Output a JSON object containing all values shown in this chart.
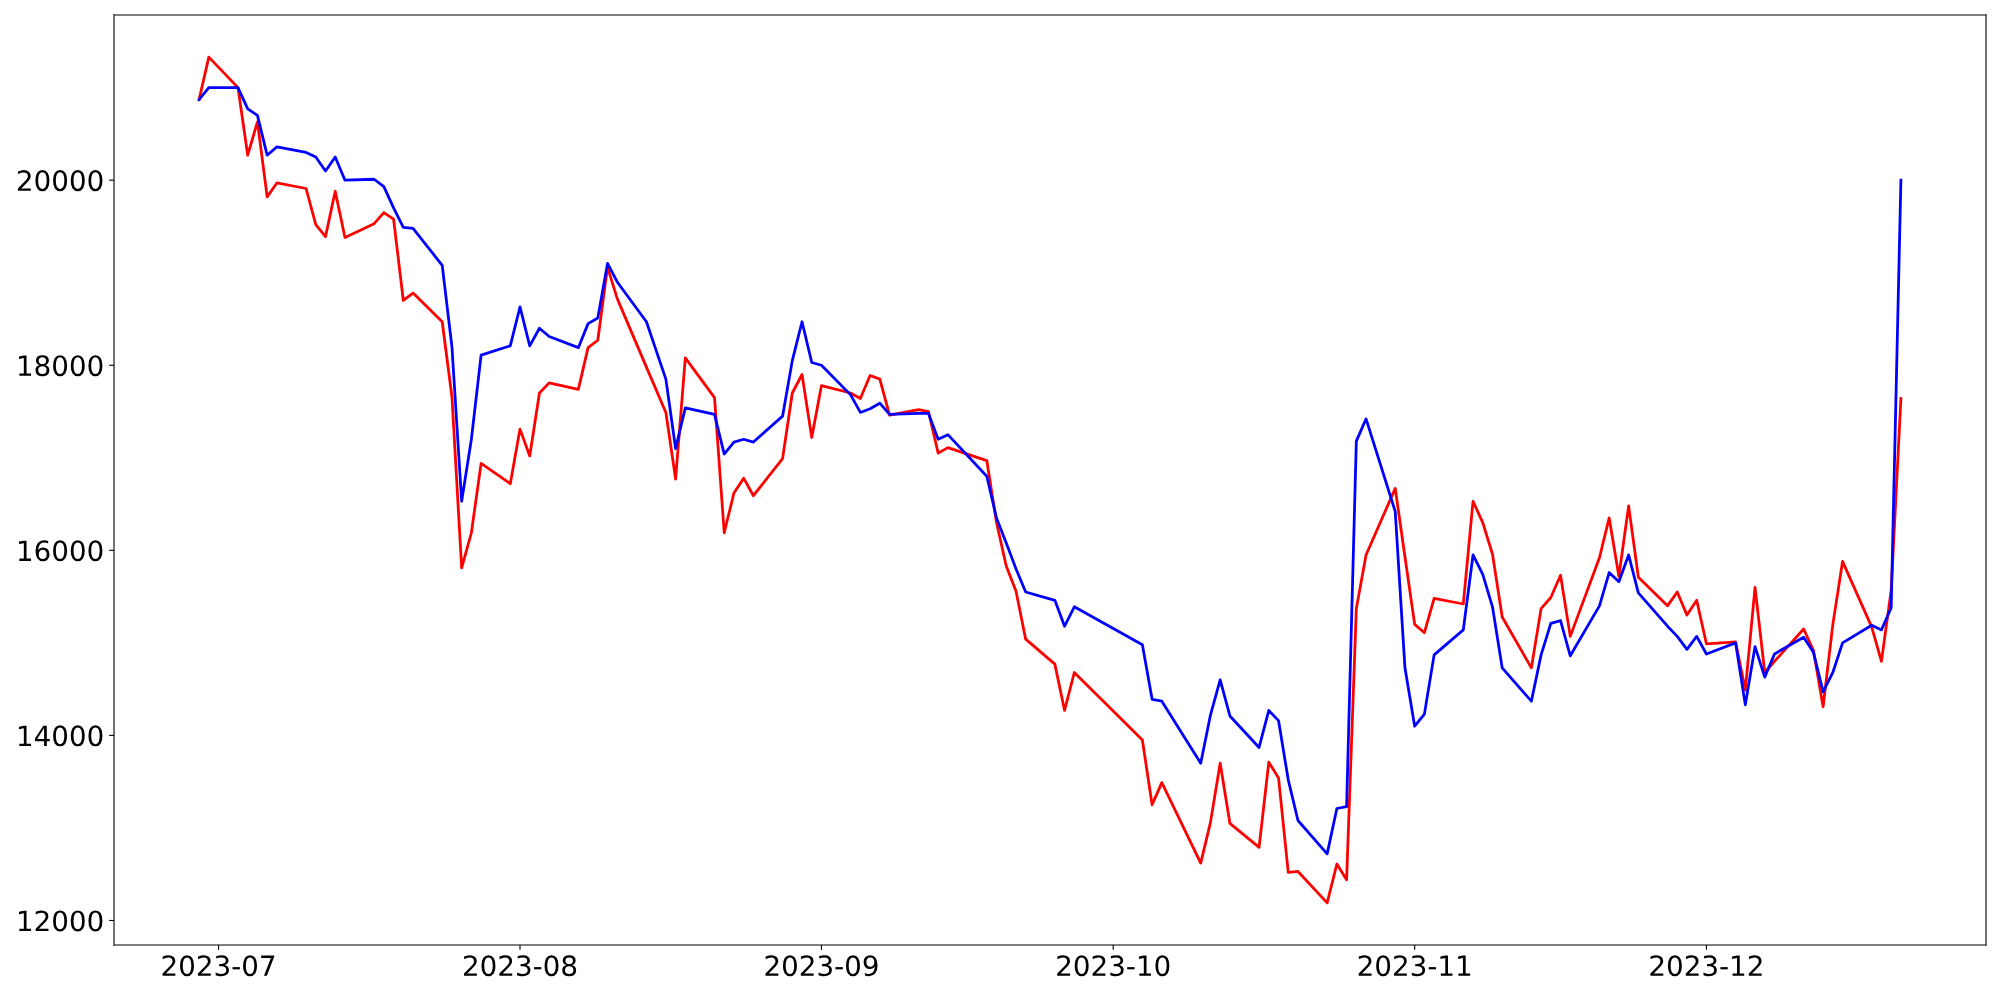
{
  "chart_data": {
    "type": "line",
    "x": [
      "2023-06-29",
      "2023-06-30",
      "2023-07-03",
      "2023-07-04",
      "2023-07-05",
      "2023-07-06",
      "2023-07-07",
      "2023-07-10",
      "2023-07-11",
      "2023-07-12",
      "2023-07-13",
      "2023-07-14",
      "2023-07-17",
      "2023-07-18",
      "2023-07-19",
      "2023-07-20",
      "2023-07-21",
      "2023-07-24",
      "2023-07-25",
      "2023-07-26",
      "2023-07-27",
      "2023-07-28",
      "2023-07-31",
      "2023-08-01",
      "2023-08-02",
      "2023-08-03",
      "2023-08-04",
      "2023-08-07",
      "2023-08-08",
      "2023-08-09",
      "2023-08-10",
      "2023-08-11",
      "2023-08-14",
      "2023-08-16",
      "2023-08-17",
      "2023-08-18",
      "2023-08-21",
      "2023-08-22",
      "2023-08-23",
      "2023-08-24",
      "2023-08-25",
      "2023-08-28",
      "2023-08-29",
      "2023-08-30",
      "2023-08-31",
      "2023-09-01",
      "2023-09-04",
      "2023-09-05",
      "2023-09-06",
      "2023-09-07",
      "2023-09-08",
      "2023-09-11",
      "2023-09-12",
      "2023-09-13",
      "2023-09-14",
      "2023-09-18",
      "2023-09-19",
      "2023-09-20",
      "2023-09-21",
      "2023-09-22",
      "2023-09-25",
      "2023-09-26",
      "2023-09-27",
      "2023-10-04",
      "2023-10-05",
      "2023-10-06",
      "2023-10-10",
      "2023-10-11",
      "2023-10-12",
      "2023-10-13",
      "2023-10-16",
      "2023-10-17",
      "2023-10-18",
      "2023-10-19",
      "2023-10-20",
      "2023-10-23",
      "2023-10-24",
      "2023-10-25",
      "2023-10-26",
      "2023-10-27",
      "2023-10-30",
      "2023-10-31",
      "2023-11-01",
      "2023-11-02",
      "2023-11-03",
      "2023-11-06",
      "2023-11-07",
      "2023-11-08",
      "2023-11-09",
      "2023-11-10",
      "2023-11-13",
      "2023-11-14",
      "2023-11-15",
      "2023-11-16",
      "2023-11-17",
      "2023-11-20",
      "2023-11-21",
      "2023-11-22",
      "2023-11-23",
      "2023-11-24",
      "2023-11-27",
      "2023-11-28",
      "2023-11-29",
      "2023-11-30",
      "2023-12-01",
      "2023-12-04",
      "2023-12-05",
      "2023-12-06",
      "2023-12-07",
      "2023-12-08",
      "2023-12-11",
      "2023-12-12",
      "2023-12-13",
      "2023-12-14",
      "2023-12-15",
      "2023-12-18",
      "2023-12-19",
      "2023-12-20",
      "2023-12-21"
    ],
    "series": [
      {
        "color": "#ff0000",
        "values": [
          20870,
          21330,
          21000,
          20270,
          20630,
          19820,
          19970,
          19910,
          19520,
          19390,
          19880,
          19380,
          19530,
          19650,
          19580,
          18700,
          18780,
          18470,
          17660,
          15810,
          16190,
          16940,
          16720,
          17310,
          17020,
          17700,
          17810,
          17740,
          18190,
          18270,
          19060,
          18720,
          17980,
          17490,
          16770,
          18080,
          17650,
          16190,
          16620,
          16780,
          16590,
          16990,
          17700,
          17900,
          17220,
          17780,
          17700,
          17640,
          17890,
          17850,
          17460,
          17520,
          17500,
          17050,
          17110,
          16970,
          16300,
          15830,
          15560,
          15040,
          14770,
          14270,
          14680,
          13950,
          13250,
          13490,
          12620,
          13060,
          13700,
          13050,
          12790,
          13710,
          13540,
          12520,
          12530,
          12190,
          12610,
          12440,
          15370,
          15950,
          16670,
          15930,
          15200,
          15110,
          15480,
          15420,
          16530,
          16300,
          15960,
          15280,
          14730,
          15370,
          15490,
          15730,
          15070,
          15920,
          16350,
          15720,
          16480,
          15710,
          15400,
          15550,
          15300,
          15460,
          14990,
          15010,
          14490,
          15600,
          14680,
          14800,
          15150,
          14920,
          14310,
          15200,
          15880,
          15170,
          14800,
          15570,
          17640
        ]
      },
      {
        "color": "#0000ff",
        "values": [
          20870,
          21000,
          21000,
          20770,
          20700,
          20270,
          20360,
          20300,
          20250,
          20100,
          20250,
          20000,
          20010,
          19930,
          19700,
          19490,
          19480,
          19080,
          18200,
          16530,
          17200,
          18110,
          18210,
          18630,
          18210,
          18400,
          18310,
          18190,
          18450,
          18510,
          19100,
          18900,
          18470,
          17850,
          17100,
          17540,
          17470,
          17040,
          17170,
          17200,
          17170,
          17450,
          18050,
          18470,
          18030,
          18000,
          17680,
          17490,
          17530,
          17590,
          17470,
          17480,
          17480,
          17200,
          17250,
          16800,
          16350,
          16080,
          15800,
          15550,
          15460,
          15180,
          15390,
          14980,
          14390,
          14370,
          13700,
          14220,
          14600,
          14210,
          13870,
          14270,
          14160,
          13520,
          13080,
          12720,
          13210,
          13230,
          17180,
          17420,
          16420,
          14730,
          14100,
          14230,
          14870,
          15140,
          15950,
          15740,
          15390,
          14730,
          14370,
          14870,
          15210,
          15240,
          14860,
          15400,
          15760,
          15660,
          15950,
          15540,
          15180,
          15070,
          14930,
          15070,
          14880,
          15000,
          14330,
          14960,
          14630,
          14880,
          15060,
          14900,
          14470,
          14680,
          15000,
          15190,
          15140,
          15380,
          20000
        ]
      }
    ],
    "xlim": [
      "2023-06-20T06:00",
      "2023-12-29T18:00"
    ],
    "xticks": [
      {
        "value": "2023-07-01",
        "label": "2023-07"
      },
      {
        "value": "2023-08-01",
        "label": "2023-08"
      },
      {
        "value": "2023-09-01",
        "label": "2023-09"
      },
      {
        "value": "2023-10-01",
        "label": "2023-10"
      },
      {
        "value": "2023-11-01",
        "label": "2023-11"
      },
      {
        "value": "2023-12-01",
        "label": "2023-12"
      }
    ],
    "ylim": [
      11735,
      21785
    ],
    "yticks": [
      12000,
      14000,
      16000,
      18000,
      20000
    ],
    "grid": false,
    "marker": "none",
    "line_style": "solid"
  }
}
